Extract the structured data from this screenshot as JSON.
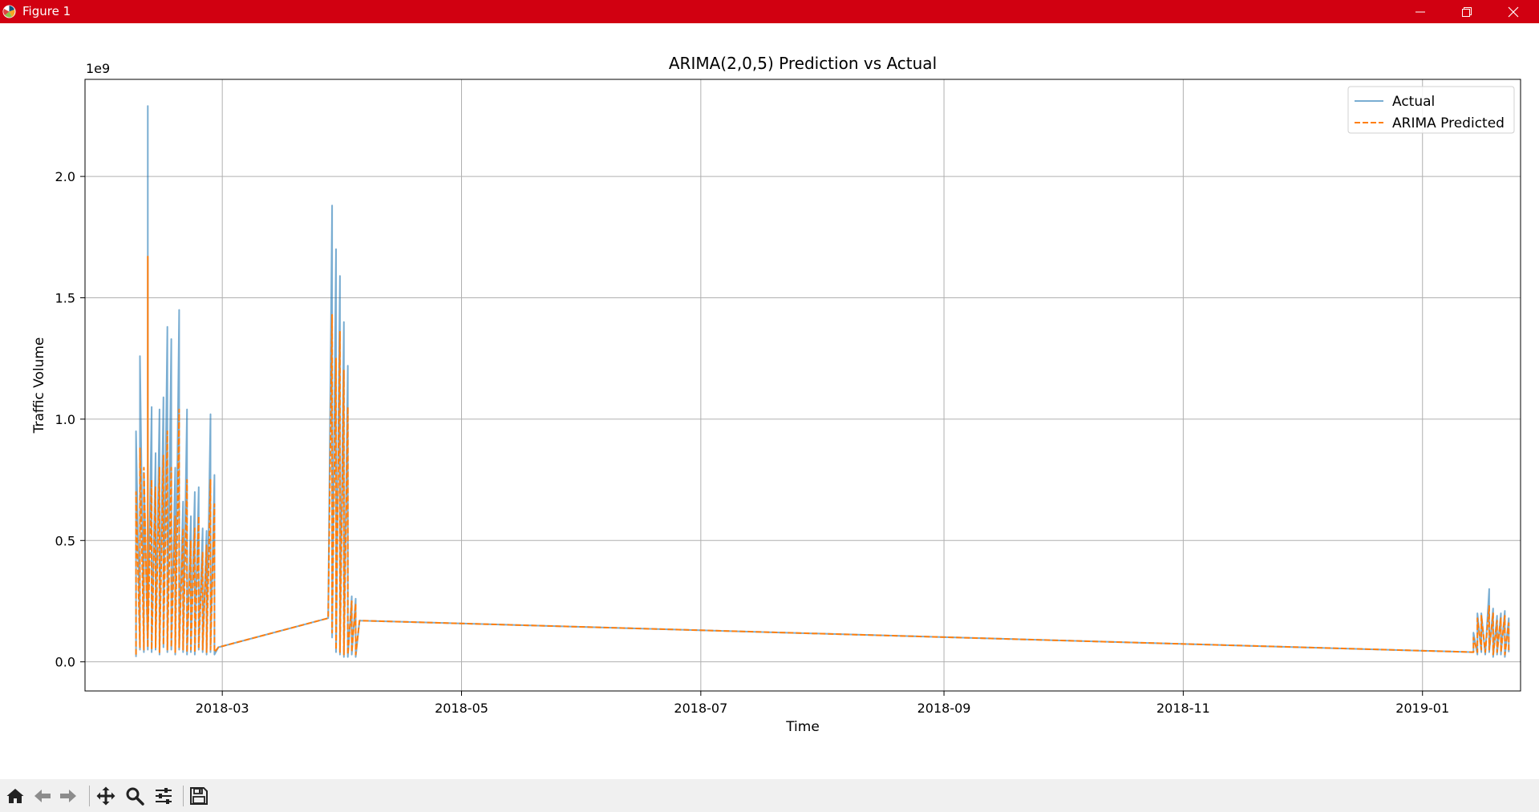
{
  "window": {
    "title": "Figure 1",
    "titlebar_color": "#d10011",
    "icons": [
      "matplotlib-logo-icon",
      "minimize-icon",
      "maximize-icon",
      "close-icon"
    ]
  },
  "toolbar": {
    "tools": [
      {
        "name": "home-icon",
        "action": "Reset original view"
      },
      {
        "name": "back-arrow-icon",
        "action": "Back"
      },
      {
        "name": "forward-arrow-icon",
        "action": "Forward"
      },
      {
        "name": "pan-icon",
        "action": "Pan"
      },
      {
        "name": "zoom-icon",
        "action": "Zoom"
      },
      {
        "name": "configure-subplots-icon",
        "action": "Configure subplots"
      },
      {
        "name": "save-icon",
        "action": "Save"
      }
    ]
  },
  "chart_data": {
    "type": "line",
    "title": "ARIMA(2,0,5) Prediction vs Actual",
    "xlabel": "Time",
    "ylabel": "Traffic Volume",
    "y_offset_label": "1e9",
    "x_ticks": [
      "2018-03",
      "2018-05",
      "2018-07",
      "2018-09",
      "2018-11",
      "2019-01"
    ],
    "y_ticks": [
      "0.0",
      "0.5",
      "1.0",
      "1.5",
      "2.0"
    ],
    "xlim": [
      "2018-01-25",
      "2019-01-26"
    ],
    "ylim": [
      -0.12,
      2.4
    ],
    "y_scale_factor": 1000000000,
    "grid": true,
    "legend_position": "top-right",
    "series": [
      {
        "name": "Actual",
        "color": "#1f77b4",
        "style": "solid",
        "points": [
          [
            "2018-02-07",
            0.02
          ],
          [
            "2018-02-07",
            0.95
          ],
          [
            "2018-02-08",
            0.05
          ],
          [
            "2018-02-08",
            1.26
          ],
          [
            "2018-02-09",
            0.04
          ],
          [
            "2018-02-09",
            0.78
          ],
          [
            "2018-02-10",
            0.05
          ],
          [
            "2018-02-10",
            0.6
          ],
          [
            "2018-02-10",
            2.29
          ],
          [
            "2018-02-10",
            0.08
          ],
          [
            "2018-02-11",
            1.05
          ],
          [
            "2018-02-11",
            0.04
          ],
          [
            "2018-02-12",
            0.86
          ],
          [
            "2018-02-12",
            0.05
          ],
          [
            "2018-02-13",
            1.04
          ],
          [
            "2018-02-13",
            0.03
          ],
          [
            "2018-02-14",
            1.09
          ],
          [
            "2018-02-14",
            0.06
          ],
          [
            "2018-02-15",
            1.38
          ],
          [
            "2018-02-15",
            0.04
          ],
          [
            "2018-02-16",
            1.33
          ],
          [
            "2018-02-16",
            0.05
          ],
          [
            "2018-02-17",
            0.8
          ],
          [
            "2018-02-17",
            0.03
          ],
          [
            "2018-02-18",
            1.45
          ],
          [
            "2018-02-18",
            0.05
          ],
          [
            "2018-02-19",
            0.66
          ],
          [
            "2018-02-19",
            0.04
          ],
          [
            "2018-02-20",
            1.04
          ],
          [
            "2018-02-20",
            0.03
          ],
          [
            "2018-02-21",
            0.6
          ],
          [
            "2018-02-21",
            0.04
          ],
          [
            "2018-02-22",
            0.7
          ],
          [
            "2018-02-22",
            0.03
          ],
          [
            "2018-02-23",
            0.72
          ],
          [
            "2018-02-23",
            0.05
          ],
          [
            "2018-02-24",
            0.55
          ],
          [
            "2018-02-24",
            0.04
          ],
          [
            "2018-02-25",
            0.54
          ],
          [
            "2018-02-25",
            0.03
          ],
          [
            "2018-02-26",
            1.02
          ],
          [
            "2018-02-26",
            0.04
          ],
          [
            "2018-02-27",
            0.77
          ],
          [
            "2018-02-27",
            0.03
          ],
          [
            "2018-02-28",
            0.06
          ],
          [
            "2018-03-28",
            0.18
          ],
          [
            "2018-03-29",
            1.88
          ],
          [
            "2018-03-29",
            0.1
          ],
          [
            "2018-03-30",
            1.7
          ],
          [
            "2018-03-30",
            0.04
          ],
          [
            "2018-03-31",
            1.59
          ],
          [
            "2018-03-31",
            0.03
          ],
          [
            "2018-04-01",
            1.4
          ],
          [
            "2018-04-01",
            0.02
          ],
          [
            "2018-04-02",
            1.22
          ],
          [
            "2018-04-02",
            0.02
          ],
          [
            "2018-04-03",
            0.27
          ],
          [
            "2018-04-03",
            0.03
          ],
          [
            "2018-04-04",
            0.26
          ],
          [
            "2018-04-04",
            0.02
          ],
          [
            "2018-04-05",
            0.17
          ],
          [
            "2019-01-14",
            0.04
          ],
          [
            "2019-01-14",
            0.12
          ],
          [
            "2019-01-15",
            0.03
          ],
          [
            "2019-01-15",
            0.2
          ],
          [
            "2019-01-16",
            0.04
          ],
          [
            "2019-01-16",
            0.2
          ],
          [
            "2019-01-17",
            0.03
          ],
          [
            "2019-01-18",
            0.3
          ],
          [
            "2019-01-18",
            0.04
          ],
          [
            "2019-01-19",
            0.22
          ],
          [
            "2019-01-19",
            0.02
          ],
          [
            "2019-01-20",
            0.19
          ],
          [
            "2019-01-20",
            0.03
          ],
          [
            "2019-01-21",
            0.2
          ],
          [
            "2019-01-21",
            0.03
          ],
          [
            "2019-01-22",
            0.21
          ],
          [
            "2019-01-22",
            0.02
          ],
          [
            "2019-01-23",
            0.18
          ],
          [
            "2019-01-23",
            0.04
          ]
        ]
      },
      {
        "name": "ARIMA Predicted",
        "color": "#ff7f0e",
        "style": "dashed",
        "points": [
          [
            "2018-02-07",
            0.03
          ],
          [
            "2018-02-07",
            0.7
          ],
          [
            "2018-02-08",
            0.06
          ],
          [
            "2018-02-08",
            0.88
          ],
          [
            "2018-02-09",
            0.05
          ],
          [
            "2018-02-09",
            0.8
          ],
          [
            "2018-02-10",
            0.06
          ],
          [
            "2018-02-10",
            0.55
          ],
          [
            "2018-02-10",
            1.67
          ],
          [
            "2018-02-10",
            0.1
          ],
          [
            "2018-02-11",
            0.75
          ],
          [
            "2018-02-11",
            0.05
          ],
          [
            "2018-02-12",
            0.72
          ],
          [
            "2018-02-12",
            0.06
          ],
          [
            "2018-02-13",
            0.8
          ],
          [
            "2018-02-13",
            0.04
          ],
          [
            "2018-02-14",
            0.85
          ],
          [
            "2018-02-14",
            0.07
          ],
          [
            "2018-02-15",
            0.95
          ],
          [
            "2018-02-15",
            0.05
          ],
          [
            "2018-02-16",
            0.8
          ],
          [
            "2018-02-16",
            0.06
          ],
          [
            "2018-02-17",
            0.6
          ],
          [
            "2018-02-17",
            0.04
          ],
          [
            "2018-02-18",
            1.04
          ],
          [
            "2018-02-18",
            0.06
          ],
          [
            "2018-02-19",
            0.55
          ],
          [
            "2018-02-19",
            0.05
          ],
          [
            "2018-02-20",
            0.75
          ],
          [
            "2018-02-20",
            0.04
          ],
          [
            "2018-02-21",
            0.5
          ],
          [
            "2018-02-21",
            0.05
          ],
          [
            "2018-02-22",
            0.55
          ],
          [
            "2018-02-22",
            0.04
          ],
          [
            "2018-02-23",
            0.6
          ],
          [
            "2018-02-23",
            0.06
          ],
          [
            "2018-02-24",
            0.45
          ],
          [
            "2018-02-24",
            0.05
          ],
          [
            "2018-02-25",
            0.48
          ],
          [
            "2018-02-25",
            0.04
          ],
          [
            "2018-02-26",
            0.75
          ],
          [
            "2018-02-26",
            0.05
          ],
          [
            "2018-02-27",
            0.65
          ],
          [
            "2018-02-27",
            0.04
          ],
          [
            "2018-02-28",
            0.06
          ],
          [
            "2018-03-28",
            0.18
          ],
          [
            "2018-03-29",
            1.43
          ],
          [
            "2018-03-29",
            0.12
          ],
          [
            "2018-03-30",
            1.25
          ],
          [
            "2018-03-30",
            0.05
          ],
          [
            "2018-03-31",
            1.36
          ],
          [
            "2018-03-31",
            0.04
          ],
          [
            "2018-04-01",
            1.2
          ],
          [
            "2018-04-01",
            0.03
          ],
          [
            "2018-04-02",
            1.05
          ],
          [
            "2018-04-02",
            0.03
          ],
          [
            "2018-04-03",
            0.25
          ],
          [
            "2018-04-03",
            0.04
          ],
          [
            "2018-04-04",
            0.24
          ],
          [
            "2018-04-04",
            0.03
          ],
          [
            "2018-04-05",
            0.17
          ],
          [
            "2019-01-14",
            0.04
          ],
          [
            "2019-01-14",
            0.1
          ],
          [
            "2019-01-15",
            0.04
          ],
          [
            "2019-01-15",
            0.18
          ],
          [
            "2019-01-16",
            0.05
          ],
          [
            "2019-01-16",
            0.19
          ],
          [
            "2019-01-17",
            0.04
          ],
          [
            "2019-01-18",
            0.23
          ],
          [
            "2019-01-18",
            0.05
          ],
          [
            "2019-01-19",
            0.2
          ],
          [
            "2019-01-19",
            0.03
          ],
          [
            "2019-01-20",
            0.17
          ],
          [
            "2019-01-20",
            0.04
          ],
          [
            "2019-01-21",
            0.18
          ],
          [
            "2019-01-21",
            0.04
          ],
          [
            "2019-01-22",
            0.19
          ],
          [
            "2019-01-22",
            0.03
          ],
          [
            "2019-01-23",
            0.16
          ],
          [
            "2019-01-23",
            0.04
          ]
        ]
      }
    ]
  }
}
